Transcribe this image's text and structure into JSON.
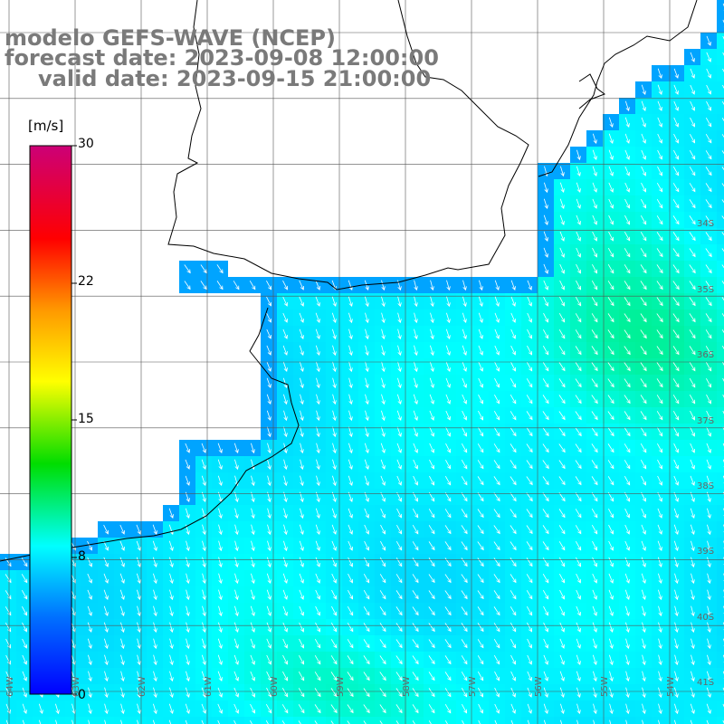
{
  "titles": {
    "model": "modelo GEFS-WAVE (NCEP)",
    "forecast": "forecast date: 2023-09-08 12:00:00",
    "valid": "valid date: 2023-09-15 21:00:00"
  },
  "colorbar": {
    "unit_label": "[m/s]",
    "tick_labels": [
      "30",
      "22",
      "15",
      "8",
      "0"
    ],
    "tick_values": [
      30,
      22,
      15,
      8,
      0
    ],
    "range": [
      0,
      30
    ],
    "colors": [
      "#0000ff",
      "#00aaff",
      "#00ffff",
      "#00ff00",
      "#ffff00",
      "#ff8800",
      "#ff0000",
      "#cc0077"
    ]
  },
  "map": {
    "lat_labels": [
      "34S",
      "35S",
      "36S",
      "37S",
      "38S",
      "39S",
      "40S",
      "41S"
    ],
    "lon_labels": [
      "64W",
      "63W",
      "62W",
      "61W",
      "60W",
      "59W",
      "58W",
      "57W",
      "56W",
      "55W",
      "54W"
    ]
  },
  "chart_data": {
    "type": "heatmap",
    "variable": "wind speed",
    "unit": "[m/s]",
    "value_range": [
      0,
      30
    ],
    "typical_values": {
      "open_ocean": [
        7,
        11
      ],
      "near_coast": [
        3,
        6
      ],
      "max_offshore": 11
    },
    "arrow_direction": "predominantly from north-northwest toward south-southeast"
  }
}
